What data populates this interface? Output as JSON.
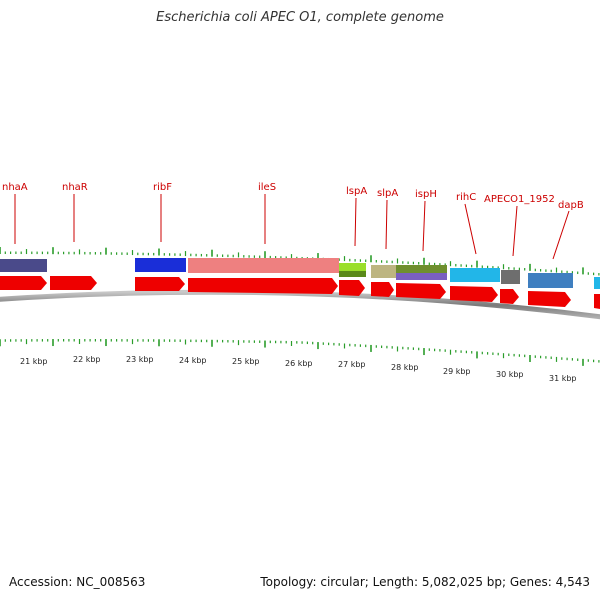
{
  "header": {
    "title": "Escherichia coli APEC O1, complete genome"
  },
  "footer": {
    "accession": "Accession: NC_008563",
    "genome_info": "Topology: circular; Length: 5,082,025 bp; Genes: 4,543"
  },
  "gene_labels": [
    "nhaA",
    "nhaR",
    "ribF",
    "ileS",
    "lspA",
    "slpA",
    "ispH",
    "rihC",
    "APECO1_1952",
    "dapB"
  ],
  "kbp_ticks": [
    "21 kbp",
    "22 kbp",
    "23 kbp",
    "24 kbp",
    "25 kbp",
    "26 kbp",
    "27 kbp",
    "28 kbp",
    "29 kbp",
    "30 kbp",
    "31 kbp"
  ],
  "colors": {
    "gene_arrow": "#ee0000",
    "label": "#cc0000",
    "tick": "#2a9d2a",
    "backbone": "#8a8a8a",
    "cog_features": [
      "#4a4a8a",
      "#1a2ed8",
      "#ee8080",
      "#9adf2a",
      "#bdb581",
      "#7aa03a",
      "#22b6e8",
      "#6e6e6e",
      "#3f7fc0",
      "#22b6e8"
    ]
  }
}
